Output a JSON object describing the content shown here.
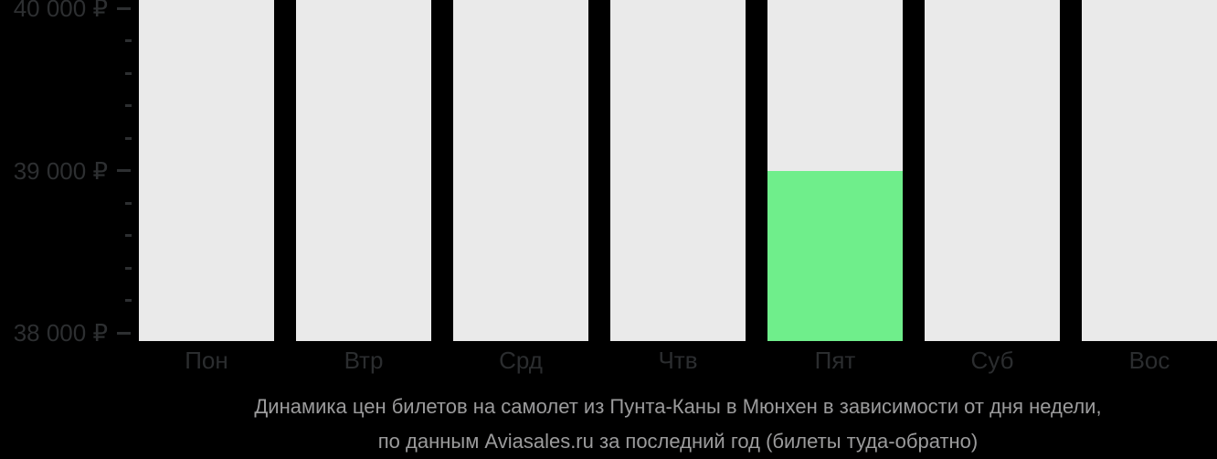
{
  "chart_data": {
    "type": "bar",
    "title_lines": [
      "Динамика цен билетов на самолет из Пунта-Каны в Мюнхен в зависимости от дня недели,",
      "по данным Aviasales.ru за последний год (билеты туда-обратно)"
    ],
    "categories": [
      "Пон",
      "Втр",
      "Срд",
      "Чтв",
      "Пят",
      "Суб",
      "Вос"
    ],
    "values": [
      null,
      null,
      null,
      null,
      39000,
      null,
      null
    ],
    "highlighted_category": "Пят",
    "xlabel": "",
    "ylabel": "",
    "ylim": [
      38000,
      40000
    ],
    "y_ticks": [
      {
        "value": 40000,
        "label": "40 000 ₽"
      },
      {
        "value": 39000,
        "label": "39 000 ₽"
      },
      {
        "value": 38000,
        "label": "38 000 ₽"
      }
    ],
    "minor_tick_step": 200,
    "grid": false,
    "legend": false,
    "bar_color": "#6fee8b",
    "column_bg_color": "#eaeaea"
  },
  "colors": {
    "background": "#000000",
    "axis_text": "#2d2f31",
    "caption_text": "#9b9b9c"
  }
}
